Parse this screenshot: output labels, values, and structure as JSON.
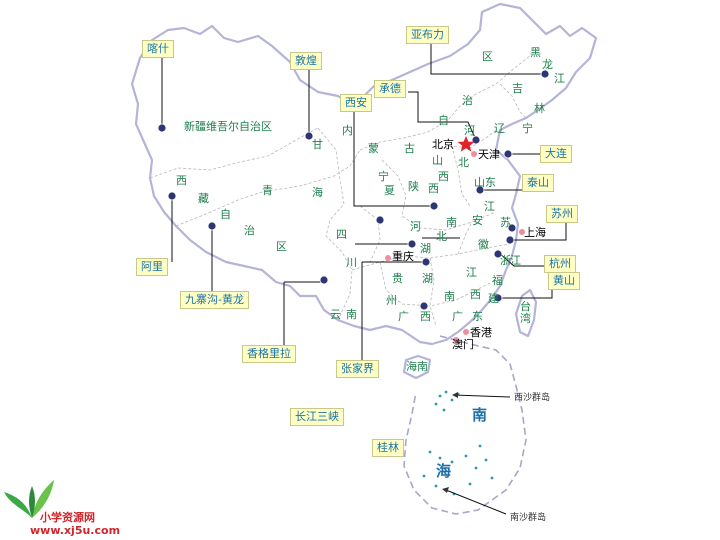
{
  "provinces": [
    {
      "id": "xinjiang",
      "text": "新疆维吾尔自治区"
    },
    {
      "id": "xizang-1",
      "text": "西"
    },
    {
      "id": "xizang-2",
      "text": "藏"
    },
    {
      "id": "xizang-3",
      "text": "自"
    },
    {
      "id": "xizang-4",
      "text": "治"
    },
    {
      "id": "xizang-5",
      "text": "区"
    },
    {
      "id": "qinghai-1",
      "text": "青"
    },
    {
      "id": "qinghai-2",
      "text": "海"
    },
    {
      "id": "gansu-1",
      "text": "甘"
    },
    {
      "id": "neimeng-1",
      "text": "内"
    },
    {
      "id": "neimeng-2",
      "text": "蒙"
    },
    {
      "id": "neimeng-3",
      "text": "古"
    },
    {
      "id": "neimeng-4",
      "text": "自"
    },
    {
      "id": "neimeng-5",
      "text": "治"
    },
    {
      "id": "neimeng-6",
      "text": "区"
    },
    {
      "id": "ningxia-1",
      "text": "宁"
    },
    {
      "id": "ningxia-2",
      "text": "夏"
    },
    {
      "id": "shaanxi-1",
      "text": "陕"
    },
    {
      "id": "shaanxi-2",
      "text": "西"
    },
    {
      "id": "shanxi-1",
      "text": "山"
    },
    {
      "id": "shanxi-2",
      "text": "西"
    },
    {
      "id": "hebei-1",
      "text": "河"
    },
    {
      "id": "hebei-2",
      "text": "北"
    },
    {
      "id": "heilongjiang-1",
      "text": "黑"
    },
    {
      "id": "heilongjiang-2",
      "text": "龙"
    },
    {
      "id": "heilongjiang-3",
      "text": "江"
    },
    {
      "id": "jilin-1",
      "text": "吉"
    },
    {
      "id": "jilin-2",
      "text": "林"
    },
    {
      "id": "liaoning-1",
      "text": "辽"
    },
    {
      "id": "liaoning-2",
      "text": "宁"
    },
    {
      "id": "shandong-1",
      "text": "山东"
    },
    {
      "id": "henan-1",
      "text": "河"
    },
    {
      "id": "henan-2",
      "text": "南"
    },
    {
      "id": "jiangsu-1",
      "text": "江"
    },
    {
      "id": "jiangsu-2",
      "text": "苏"
    },
    {
      "id": "anhui-1",
      "text": "安"
    },
    {
      "id": "anhui-2",
      "text": "徽"
    },
    {
      "id": "hubei-1",
      "text": "湖"
    },
    {
      "id": "hubei-2",
      "text": "北"
    },
    {
      "id": "sichuan-1",
      "text": "四"
    },
    {
      "id": "sichuan-2",
      "text": "川"
    },
    {
      "id": "guizhou-1",
      "text": "贵"
    },
    {
      "id": "guizhou-2",
      "text": "州"
    },
    {
      "id": "hunan-1",
      "text": "湖"
    },
    {
      "id": "hunan-2",
      "text": "南"
    },
    {
      "id": "jiangxi-1",
      "text": "江"
    },
    {
      "id": "jiangxi-2",
      "text": "西"
    },
    {
      "id": "zhejiang-1",
      "text": "浙"
    },
    {
      "id": "zhejiang-2",
      "text": "江"
    },
    {
      "id": "fujian-1",
      "text": "福"
    },
    {
      "id": "fujian-2",
      "text": "建"
    },
    {
      "id": "yunnan-1",
      "text": "云"
    },
    {
      "id": "yunnan-2",
      "text": "南"
    },
    {
      "id": "guangxi-1",
      "text": "广"
    },
    {
      "id": "guangxi-2",
      "text": "西"
    },
    {
      "id": "guangdong-1",
      "text": "广"
    },
    {
      "id": "guangdong-2",
      "text": "东"
    },
    {
      "id": "taiwan-1",
      "text": "台"
    },
    {
      "id": "taiwan-2",
      "text": "湾"
    },
    {
      "id": "hainan",
      "text": "海南"
    }
  ],
  "cities": {
    "beijing": "北京",
    "tianjin": "天津",
    "shanghai": "上海",
    "chongqing": "重庆",
    "hongkong": "香港",
    "macau": "澳门"
  },
  "callouts": {
    "kashgar": "喀什",
    "dunhuang": "敦煌",
    "yabuli": "亚布力",
    "chengde": "承德",
    "xian": "西安",
    "dalian": "大连",
    "taishan": "泰山",
    "suzhou": "苏州",
    "hangzhou": "杭州",
    "huangshan": "黄山",
    "ali": "阿里",
    "jiuzhaigou": "九寨沟-黄龙",
    "shangrila": "香格里拉",
    "zhangjiajie": "张家界",
    "three_gorges": "长江三峡",
    "guilin": "桂林"
  },
  "sea": {
    "nanhai_1": "南",
    "nanhai_2": "海",
    "xisha": "西沙群岛",
    "nansha": "南沙群岛"
  },
  "brand": {
    "name": "小学资源网",
    "url": "www.xj5u.com"
  },
  "colors": {
    "border": "#b4b4d8",
    "province_text": "#1d7f4c",
    "callout_bg": "#ffffc4",
    "callout_text": "#1a73a8",
    "pin": "#2e3575",
    "capital_star": "#e0232a",
    "brand": "#d0262b"
  },
  "icons": [
    "capital-star-icon",
    "location-pin-icon",
    "leaf-logo-icon"
  ]
}
